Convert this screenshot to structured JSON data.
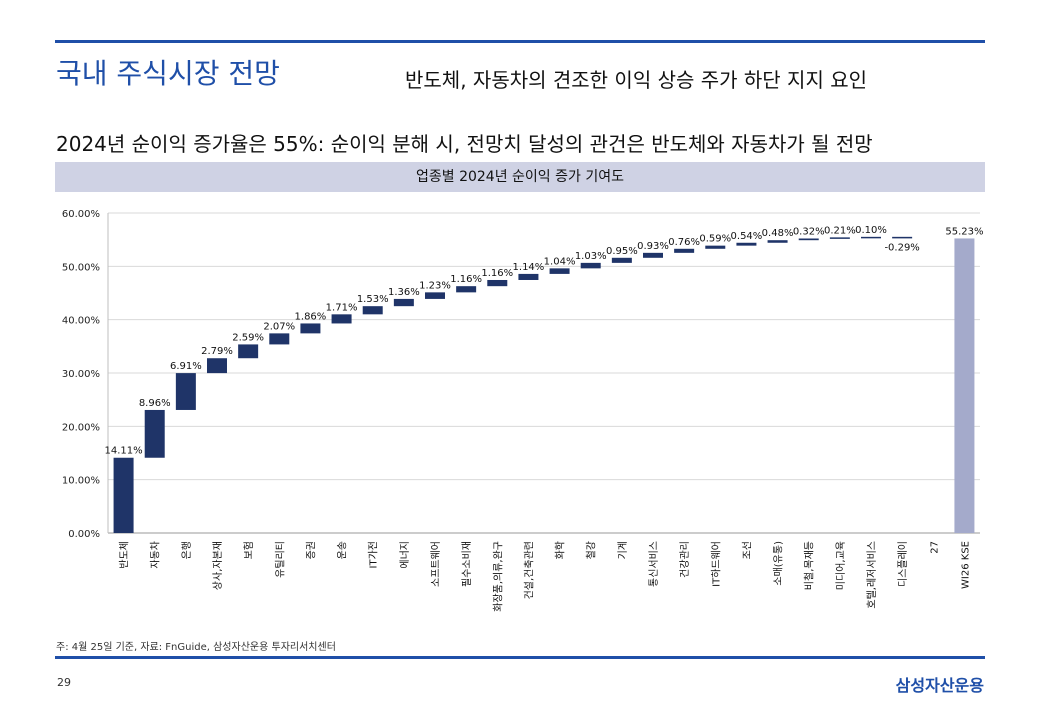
{
  "page": {
    "title": "국내 주식시장 전망",
    "subtitle": "반도체, 자동차의 견조한 이익 상승 주가 하단 지지 요인",
    "headline": "2024년 순이익 증가율은 55%: 순이익 분해 시, 전망치 달성의 관건은 반도체와 자동차가 될 전망",
    "footnote": "주: 4월 25일 기준, 자료: FnGuide, 삼성자산운용 투자리서치센터",
    "page_number": "29",
    "brand": "삼성자산운용"
  },
  "colors": {
    "accent": "#1f4fa8",
    "bar": "#1f3468",
    "total_bar": "#a4aacb",
    "header_bg": "#cfd2e4"
  },
  "chart_data": {
    "type": "waterfall",
    "title": "업종별 2024년 순이익 증가 기여도",
    "ylim": [
      0,
      60
    ],
    "yticks": [
      0,
      10,
      20,
      30,
      40,
      50,
      60
    ],
    "ytick_labels": [
      "0.00%",
      "10.00%",
      "20.00%",
      "30.00%",
      "40.00%",
      "50.00%",
      "60.00%"
    ],
    "categories": [
      "반도체",
      "자동차",
      "은행",
      "상사,자본재",
      "보험",
      "유틸리티",
      "증권",
      "운송",
      "IT가전",
      "에너지",
      "소프트웨어",
      "필수소비재",
      "화장품,의류,완구",
      "건설,건축관련",
      "화학",
      "철강",
      "기계",
      "통신서비스",
      "건강관리",
      "IT하드웨어",
      "조선",
      "소매(유통)",
      "비철,목재등",
      "미디어,교육",
      "호텔,레저서비스",
      "디스플레이",
      "27",
      "WI26 KSE"
    ],
    "values": [
      14.11,
      8.96,
      6.91,
      2.79,
      2.59,
      2.07,
      1.86,
      1.71,
      1.53,
      1.36,
      1.23,
      1.16,
      1.16,
      1.14,
      1.04,
      1.03,
      0.95,
      0.93,
      0.76,
      0.59,
      0.54,
      0.48,
      0.32,
      0.21,
      0.1,
      -0.29,
      null,
      55.23
    ],
    "value_labels": [
      "14.11%",
      "8.96%",
      "6.91%",
      "2.79%",
      "2.59%",
      "2.07%",
      "1.86%",
      "1.71%",
      "1.53%",
      "1.36%",
      "1.23%",
      "1.16%",
      "1.16%",
      "1.14%",
      "1.04%",
      "1.03%",
      "0.95%",
      "0.93%",
      "0.76%",
      "0.59%",
      "0.54%",
      "0.48%",
      "0.32%",
      "0.21%",
      "0.10%",
      "-0.29%",
      "",
      "55.23%"
    ],
    "total_index": 27
  }
}
